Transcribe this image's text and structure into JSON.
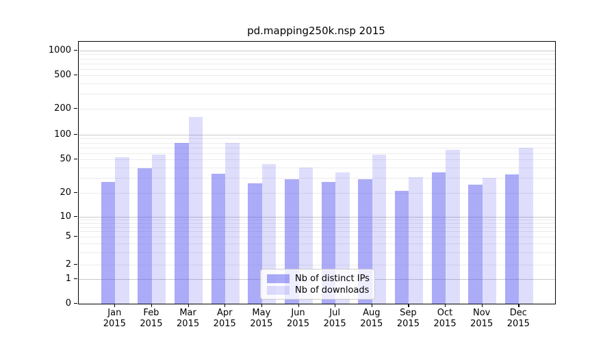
{
  "title": "pd.mapping250k.nsp 2015",
  "chart_data": {
    "type": "bar",
    "title": "pd.mapping250k.nsp 2015",
    "categories": [
      "Jan 2015",
      "Feb 2015",
      "Mar 2015",
      "Apr 2015",
      "May 2015",
      "Jun 2015",
      "Jul 2015",
      "Aug 2015",
      "Sep 2015",
      "Oct 2015",
      "Nov 2015",
      "Dec 2015"
    ],
    "x_tick_line1": [
      "Jan",
      "Feb",
      "Mar",
      "Apr",
      "May",
      "Jun",
      "Jul",
      "Aug",
      "Sep",
      "Oct",
      "Nov",
      "Dec"
    ],
    "x_tick_line2": [
      "2015",
      "2015",
      "2015",
      "2015",
      "2015",
      "2015",
      "2015",
      "2015",
      "2015",
      "2015",
      "2015",
      "2015"
    ],
    "series": [
      {
        "name": "Nb of distinct IPs",
        "color": "rgba(80,80,240,0.48)",
        "values": [
          27,
          39,
          80,
          34,
          26,
          29,
          27,
          29,
          21,
          35,
          25,
          33
        ]
      },
      {
        "name": "Nb of downloads",
        "color": "rgba(80,80,240,0.19)",
        "values": [
          53,
          57,
          160,
          80,
          44,
          40,
          35,
          57,
          31,
          66,
          30,
          70
        ]
      }
    ],
    "yscale": "symlog",
    "ylim": [
      0,
      1000
    ],
    "yticks": [
      0,
      1,
      2,
      5,
      10,
      20,
      50,
      100,
      200,
      500,
      1000
    ],
    "grid": true,
    "legend_position": "lower center",
    "colors": {
      "bar_dark_on_white": "#abaaf8",
      "bar_light_on_white": "#dcdcfa",
      "major_grid": "#c9c9c9",
      "minor_grid": "#ebebeb",
      "axis": "#000000"
    }
  }
}
